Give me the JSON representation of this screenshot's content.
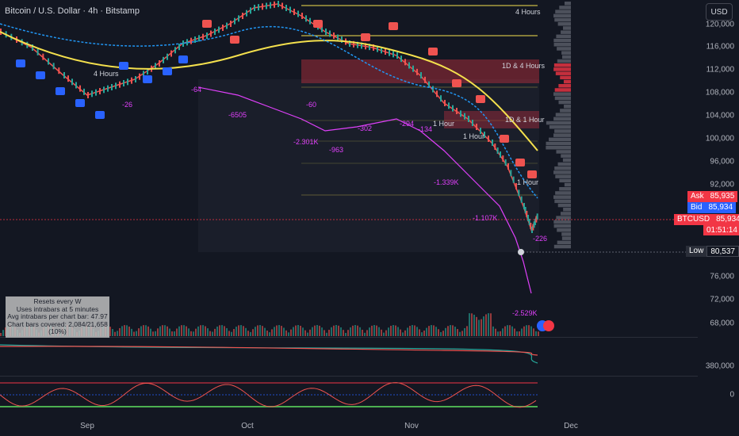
{
  "header": {
    "title": "Bitcoin / U.S. Dollar · 4h · Bitstamp",
    "currency": "USD"
  },
  "price_axis": [
    "120,000",
    "116,000",
    "112,000",
    "108,000",
    "104,000",
    "100,000",
    "96,000",
    "92,000",
    "76,000",
    "72,000",
    "68,000"
  ],
  "lower_axis": {
    "volume_osc": "380,000",
    "osc_zero": "0"
  },
  "labels": {
    "ask": {
      "k": "Ask",
      "v": "85,935"
    },
    "bid": {
      "k": "Bid",
      "v": "85,934"
    },
    "symbol": {
      "k": "BTCUSD",
      "v": "85,934",
      "timer": "01:51:14"
    },
    "low": {
      "k": "Low",
      "v": "80,537"
    }
  },
  "time_axis": [
    "Sep",
    "Oct",
    "Nov",
    "Dec"
  ],
  "infobox": {
    "line1": "Resets every W",
    "line2": "Uses intrabars at 5 minutes",
    "line3": "Avg intrabars per chart bar: 47.97",
    "line4": "Chart bars covered: 2,084/21,658 (10%)"
  },
  "annotations": {
    "h4_top": "4 Hours",
    "h4_mid": "1D & 4 Hours",
    "h1_a": "1D & 1 Hour",
    "h1_b": "1 Hour",
    "h1_c": "1 Hour",
    "h1_d": "1 Hour",
    "h4_left": "4 Hours",
    "d1": "-2.301K",
    "d2": "-963",
    "d3": "-302",
    "d4": "-294",
    "d5": "-134",
    "d6": "-60",
    "d7": "-6505",
    "d8": "-1.339K",
    "d9": "-1.107K",
    "d10": "-2.529K",
    "d11": "-226",
    "d12": "-26",
    "d13": "-64"
  },
  "colors": {
    "bull": "#26a69a",
    "bear": "#ef5350",
    "blue": "#2962ff",
    "ema": "#f4e04d",
    "vwap": "#2196f3",
    "delta": "#e040fb"
  }
}
